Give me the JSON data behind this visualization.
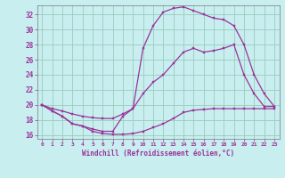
{
  "xlabel": "Windchill (Refroidissement éolien,°C)",
  "bg_color": "#c8eef0",
  "grid_color": "#99ccbb",
  "line_color": "#993399",
  "xlim": [
    -0.5,
    23.5
  ],
  "ylim": [
    15.5,
    33.2
  ],
  "yticks": [
    16,
    18,
    20,
    22,
    24,
    26,
    28,
    30,
    32
  ],
  "xticks": [
    0,
    1,
    2,
    3,
    4,
    5,
    6,
    7,
    8,
    9,
    10,
    11,
    12,
    13,
    14,
    15,
    16,
    17,
    18,
    19,
    20,
    21,
    22,
    23
  ],
  "line1_x": [
    0,
    1,
    2,
    3,
    4,
    5,
    6,
    7,
    8,
    9,
    10,
    11,
    12,
    13,
    14,
    15,
    16,
    17,
    18,
    19,
    20,
    21,
    22,
    23
  ],
  "line1_y": [
    20,
    19.2,
    18.5,
    17.5,
    17.2,
    16.5,
    16.2,
    16.1,
    16.1,
    16.2,
    16.5,
    17.0,
    17.5,
    18.2,
    19.0,
    19.3,
    19.4,
    19.5,
    19.5,
    19.5,
    19.5,
    19.5,
    19.5,
    19.5
  ],
  "line2_x": [
    0,
    1,
    2,
    3,
    4,
    5,
    6,
    7,
    8,
    9,
    10,
    11,
    12,
    13,
    14,
    15,
    16,
    17,
    18,
    19,
    20,
    21,
    22,
    23
  ],
  "line2_y": [
    20,
    19.5,
    19.2,
    18.8,
    18.5,
    18.3,
    18.2,
    18.2,
    18.8,
    19.5,
    21.5,
    23.0,
    24.0,
    25.5,
    27.0,
    27.5,
    27.0,
    27.2,
    27.5,
    28.0,
    24.0,
    21.5,
    19.8,
    19.8
  ],
  "line3_x": [
    0,
    1,
    2,
    3,
    4,
    5,
    6,
    7,
    8,
    9,
    10,
    11,
    12,
    13,
    14,
    15,
    16,
    17,
    18,
    19,
    20,
    21,
    22,
    23
  ],
  "line3_y": [
    20.0,
    19.2,
    18.5,
    17.5,
    17.2,
    16.8,
    16.5,
    16.5,
    18.5,
    19.5,
    27.5,
    30.5,
    32.3,
    32.8,
    33.0,
    32.5,
    32.0,
    31.5,
    31.3,
    30.5,
    28.0,
    24.0,
    21.5,
    19.8
  ]
}
